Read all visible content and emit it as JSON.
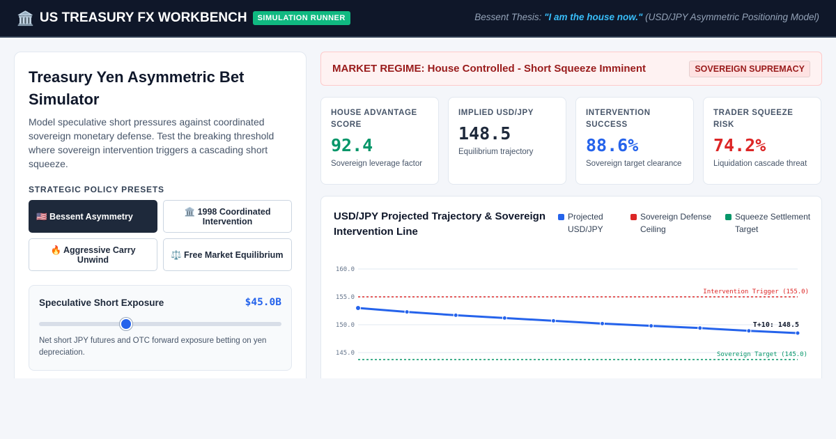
{
  "header": {
    "icon": "bank-icon",
    "icon_glyph": "🏛️",
    "title": "US TREASURY FX WORKBENCH",
    "badge": "SIMULATION RUNNER",
    "thesis_prefix": "Bessent Thesis: ",
    "thesis_quote": "\"I am the house now.\"",
    "thesis_suffix": " (USD/JPY Asymmetric Positioning Model)"
  },
  "sidebar": {
    "title": "Treasury Yen Asymmetric Bet Simulator",
    "description": "Model speculative short pressures against coordinated sovereign monetary defense. Test the breaking threshold where sovereign intervention triggers a cascading short squeeze.",
    "presets_label": "STRATEGIC POLICY PRESETS",
    "presets": [
      {
        "label": "🇺🇸 Bessent Asymmetry",
        "active": true
      },
      {
        "label": "🏛️ 1998 Coordinated Intervention",
        "active": false
      },
      {
        "label": "🔥 Aggressive Carry Unwind",
        "active": false
      },
      {
        "label": "⚖️ Free Market Equilibrium",
        "active": false
      }
    ],
    "slider": {
      "label": "Speculative Short Exposure",
      "value": "$45.0B",
      "position": 0.36,
      "note": "Net short JPY futures and OTC forward exposure betting on yen depreciation."
    }
  },
  "regime": {
    "text": "MARKET REGIME: House Controlled - Short Squeeze Imminent",
    "badge": "SOVEREIGN SUPREMACY"
  },
  "kpis": [
    {
      "label": "HOUSE ADVANTAGE SCORE",
      "value": "92.4",
      "sub": "Sovereign leverage factor",
      "color": "#059669"
    },
    {
      "label": "IMPLIED USD/JPY",
      "value": "148.5",
      "sub": "Equilibrium trajectory",
      "color": "#1e293b"
    },
    {
      "label": "INTERVENTION SUCCESS",
      "value": "88.6%",
      "sub": "Sovereign target clearance",
      "color": "#2563eb"
    },
    {
      "label": "TRADER SQUEEZE RISK",
      "value": "74.2%",
      "sub": "Liquidation cascade threat",
      "color": "#dc2626"
    }
  ],
  "chart_data": {
    "type": "line",
    "title": "USD/JPY Projected Trajectory & Sovereign Intervention Line",
    "legend": [
      {
        "name": "Projected USD/JPY",
        "color": "#2563eb"
      },
      {
        "name": "Sovereign Defense Ceiling",
        "color": "#dc2626"
      },
      {
        "name": "Squeeze Settlement Target",
        "color": "#059669"
      }
    ],
    "legend_placement": "top-right",
    "y_ticks": [
      "160.0",
      "155.0",
      "150.0",
      "145.0"
    ],
    "ylim": [
      145,
      160
    ],
    "x": [
      0,
      1,
      2,
      3,
      4,
      5,
      6,
      7,
      8,
      9
    ],
    "series": [
      {
        "name": "Projected USD/JPY",
        "values": [
          153.0,
          152.3,
          151.7,
          151.2,
          150.7,
          150.2,
          149.8,
          149.4,
          148.9,
          148.5
        ],
        "color": "#2563eb"
      }
    ],
    "ceiling": {
      "value": 155.0,
      "label": "Intervention Trigger (155.0)",
      "color": "#dc2626"
    },
    "target": {
      "value": 145.0,
      "label": "Sovereign Target (145.0)",
      "color": "#059669"
    },
    "end_label": "T+10: 148.5",
    "grid": true
  }
}
